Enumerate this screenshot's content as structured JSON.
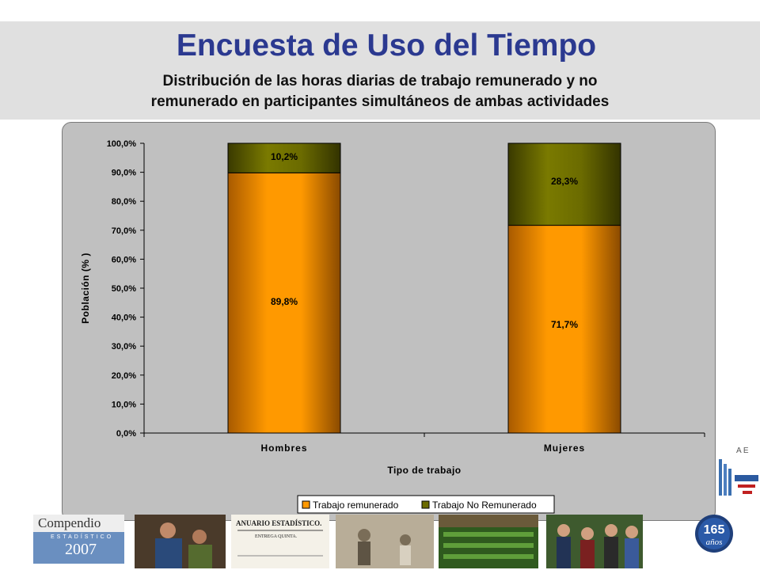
{
  "header": {
    "title": "Encuesta de Uso del Tiempo",
    "subtitle_line1": "Distribución de las horas diarias de trabajo remunerado y no",
    "subtitle_line2": "remunerado en participantes simultáneos de ambas actividades"
  },
  "chart_data": {
    "type": "bar",
    "stacked": true,
    "categories": [
      "Hombres",
      "Mujeres"
    ],
    "series": [
      {
        "name": "Trabajo remunerado",
        "values": [
          89.8,
          71.7
        ],
        "labels": [
          "89,8%",
          "71,7%"
        ],
        "color": "#ff9900"
      },
      {
        "name": "Trabajo No Remunerado",
        "values": [
          10.2,
          28.3
        ],
        "labels": [
          "10,2%",
          "28,3%"
        ],
        "color": "#6b6b00"
      }
    ],
    "xlabel": "Tipo de trabajo",
    "ylabel": "Población (% )",
    "ylim": [
      0,
      100
    ],
    "yticks": [
      0,
      10,
      20,
      30,
      40,
      50,
      60,
      70,
      80,
      90,
      100
    ],
    "ytick_labels": [
      "0,0%",
      "10,0%",
      "20,0%",
      "30,0%",
      "40,0%",
      "50,0%",
      "60,0%",
      "70,0%",
      "80,0%",
      "90,0%",
      "100,0%"
    ],
    "grid": false,
    "legend_position": "bottom-right"
  },
  "footer": {
    "compendio_label": "Compendio",
    "compendio_sub": "ESTADÍSTICO",
    "compendio_year": "2007",
    "anuario_label": "ANUARIO ESTADÍSTICO.",
    "anuario_sub": "ENTREGA QUINTA.",
    "badge_number": "165",
    "badge_word": "años"
  }
}
